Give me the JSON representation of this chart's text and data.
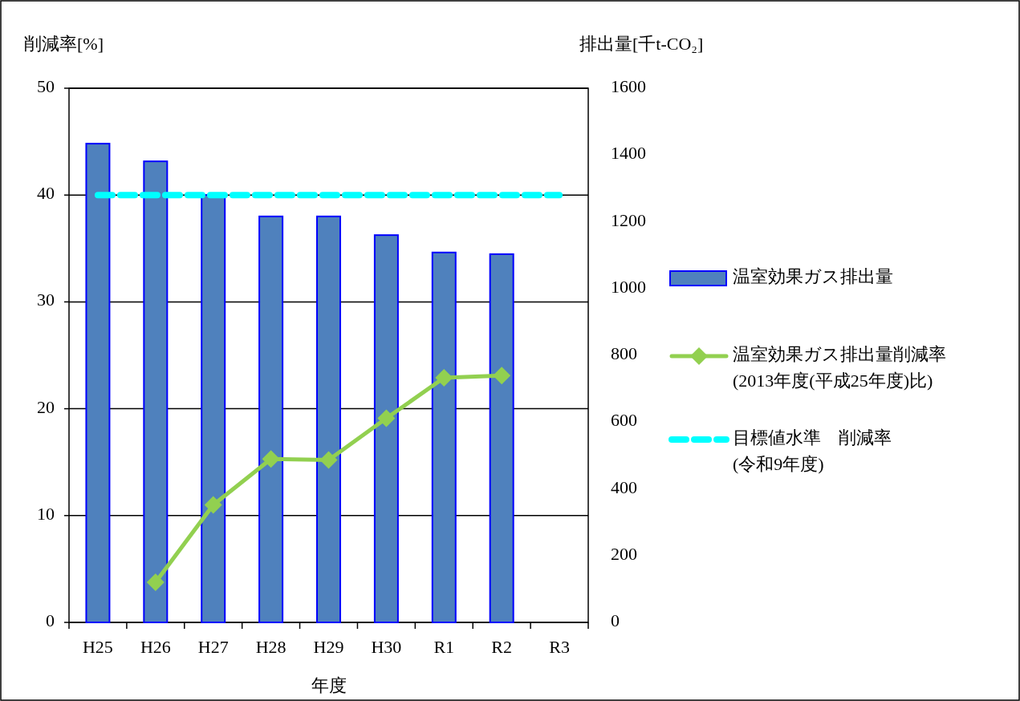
{
  "chart_data": {
    "type": "bar",
    "ylabel": "削減率[%]",
    "y2label": "排出量[千t-CO₂]",
    "xlabel": "年度",
    "categories": [
      "H25",
      "H26",
      "H27",
      "H28",
      "H29",
      "H30",
      "R1",
      "R2",
      "R3"
    ],
    "series": [
      {
        "name": "温室効果ガス排出量",
        "axis": "y2",
        "color": "#4f81bd",
        "values": [
          1434,
          1381,
          1280,
          1216,
          1216,
          1160,
          1108,
          1103,
          null
        ]
      },
      {
        "name": "温室効果ガス排出量削減率\n(2013年度(平成25年度)比)",
        "type": "line",
        "color": "#92d050",
        "marker": "diamond",
        "values": [
          null,
          3.75,
          11.0,
          15.3,
          15.2,
          19.1,
          22.9,
          23.1,
          null
        ]
      },
      {
        "name": "目標値水準　削減率\n(令和9年度)",
        "type": "line",
        "color": "#00ffff",
        "marker": "none",
        "line_style": "dashed",
        "values": [
          40,
          40,
          40,
          40,
          40,
          40,
          40,
          40,
          40
        ]
      }
    ],
    "ylim": [
      0,
      50
    ],
    "yticks": [
      0,
      10,
      20,
      30,
      40,
      50
    ],
    "y2lim": [
      0,
      1600
    ],
    "y2ticks": [
      0,
      200,
      400,
      600,
      800,
      1000,
      1200,
      1400,
      1600
    ],
    "grid": "y",
    "legend": "right"
  }
}
